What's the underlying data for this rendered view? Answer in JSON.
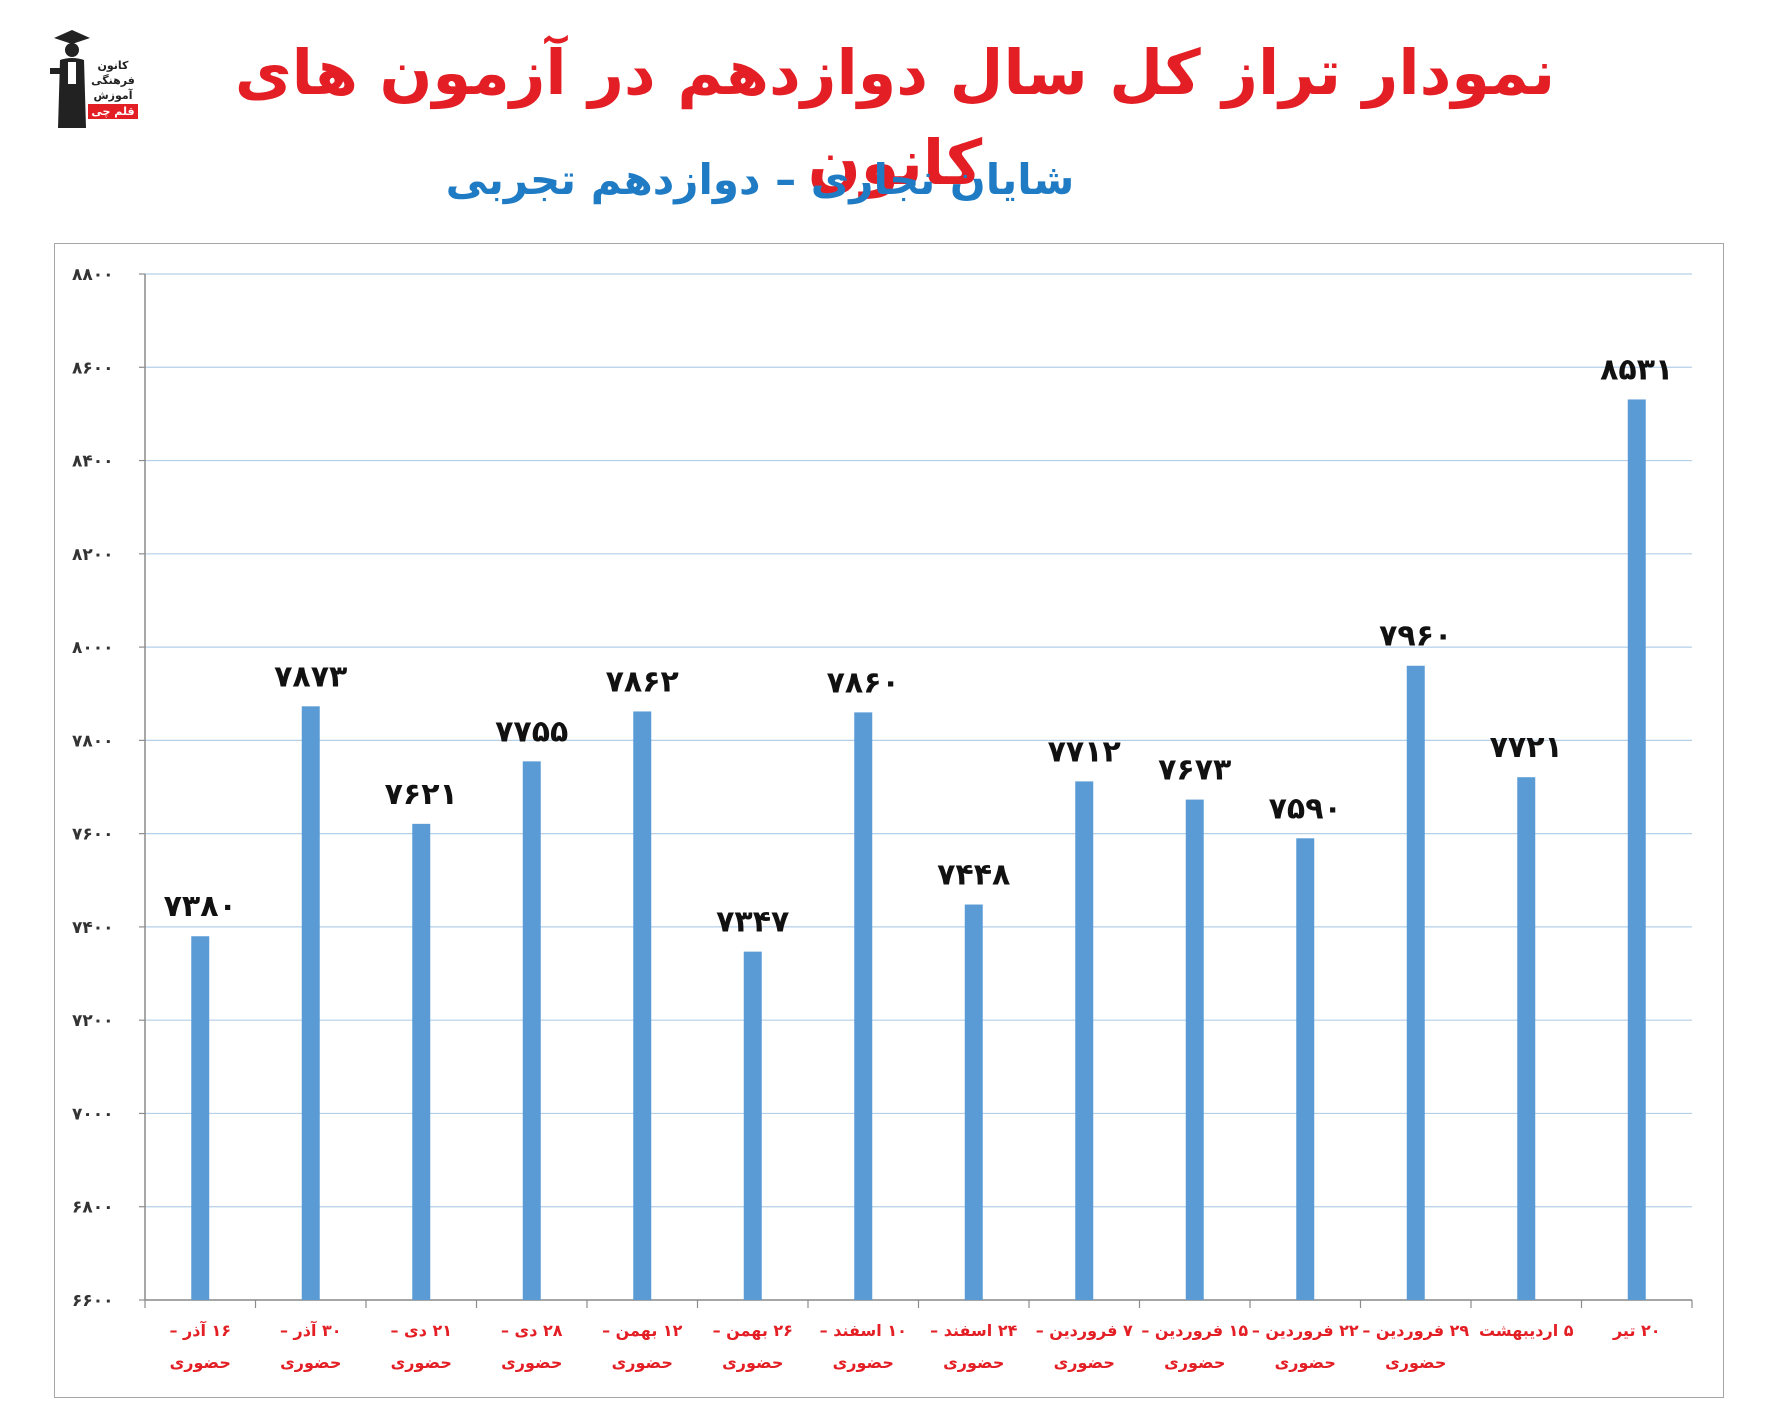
{
  "header": {
    "title": "نمودار تراز کل سال دوازدهم در آزمون های کانون",
    "subtitle": "شایان نجاری – دوازدهم تجربی"
  },
  "logo": {
    "lines": [
      "کانون",
      "فرهنگی",
      "آموزش",
      "قلم چی"
    ]
  },
  "colors": {
    "bar": "#5b9bd5",
    "title": "#e31e24",
    "subtitle": "#1f7cc4",
    "category_text": "#e31e24",
    "grid": "#b4cfe8"
  },
  "chart_data": {
    "type": "bar",
    "title": "نمودار تراز کل سال دوازدهم در آزمون های کانون",
    "subtitle": "شایان نجاری – دوازدهم تجربی",
    "xlabel": "",
    "ylabel": "",
    "ylim": [
      6600,
      8800
    ],
    "yticks": [
      6600,
      6800,
      7000,
      7200,
      7400,
      7600,
      7800,
      8000,
      8200,
      8400,
      8600,
      8800
    ],
    "ytick_labels": [
      "۶۶۰۰",
      "۶۸۰۰",
      "۷۰۰۰",
      "۷۲۰۰",
      "۷۴۰۰",
      "۷۶۰۰",
      "۷۸۰۰",
      "۸۰۰۰",
      "۸۲۰۰",
      "۸۴۰۰",
      "۸۶۰۰",
      "۸۸۰۰"
    ],
    "grid": true,
    "legend": "none",
    "categories": [
      [
        "۱۶ آذر –",
        "حضوری"
      ],
      [
        "۳۰ آذر –",
        "حضوری"
      ],
      [
        "۲۱ دی –",
        "حضوری"
      ],
      [
        "۲۸ دی –",
        "حضوری"
      ],
      [
        "۱۲ بهمن –",
        "حضوری"
      ],
      [
        "۲۶ بهمن –",
        "حضوری"
      ],
      [
        "۱۰ اسفند –",
        "حضوری"
      ],
      [
        "۲۴ اسفند –",
        "حضوری"
      ],
      [
        "۷ فروردین –",
        "حضوری"
      ],
      [
        "۱۵ فروردین –",
        "حضوری"
      ],
      [
        "۲۲ فروردین –",
        "حضوری"
      ],
      [
        "۲۹ فروردین –",
        "حضوری"
      ],
      [
        "۵ اردیبهشت"
      ],
      [
        "۲۰ تیر"
      ]
    ],
    "values": [
      7380,
      7873,
      7621,
      7755,
      7862,
      7347,
      7860,
      7448,
      7712,
      7673,
      7590,
      7960,
      7721,
      8531
    ],
    "value_labels": [
      "۷۳۸۰",
      "۷۸۷۳",
      "۷۶۲۱",
      "۷۷۵۵",
      "۷۸۶۲",
      "۷۳۴۷",
      "۷۸۶۰",
      "۷۴۴۸",
      "۷۷۱۲",
      "۷۶۷۳",
      "۷۵۹۰",
      "۷۹۶۰",
      "۷۷۲۱",
      "۸۵۳۱"
    ]
  }
}
